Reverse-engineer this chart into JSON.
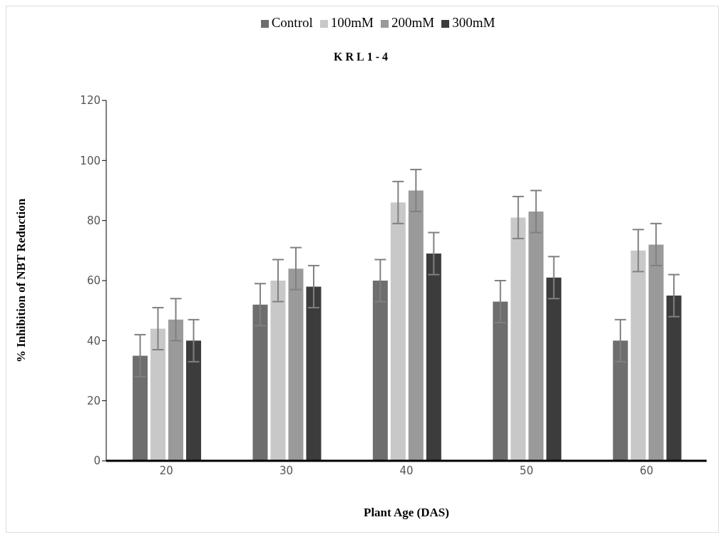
{
  "chart_data": {
    "type": "bar",
    "title": "KRL1-4",
    "xlabel": "Plant Age (DAS)",
    "ylabel": "%  Inhibition of NBT Reduction",
    "categories": [
      "20",
      "30",
      "40",
      "50",
      "60"
    ],
    "series": [
      {
        "name": "Control",
        "color": "#6e6e6e",
        "values": [
          35,
          52,
          60,
          53,
          40
        ],
        "errors": [
          7,
          7,
          7,
          7,
          7
        ]
      },
      {
        "name": "100mM",
        "color": "#c8c8c8",
        "values": [
          44,
          60,
          86,
          81,
          70
        ],
        "errors": [
          7,
          7,
          7,
          7,
          7
        ]
      },
      {
        "name": "200mM",
        "color": "#9a9a9a",
        "values": [
          47,
          64,
          90,
          83,
          72
        ],
        "errors": [
          7,
          7,
          7,
          7,
          7
        ]
      },
      {
        "name": "300mM",
        "color": "#3c3c3c",
        "values": [
          40,
          58,
          69,
          61,
          55
        ],
        "errors": [
          7,
          7,
          7,
          7,
          7
        ]
      }
    ],
    "ylim": [
      0,
      120
    ],
    "yticks": [
      0,
      20,
      40,
      60,
      80,
      100,
      120
    ],
    "grid": false,
    "legend": "top"
  }
}
